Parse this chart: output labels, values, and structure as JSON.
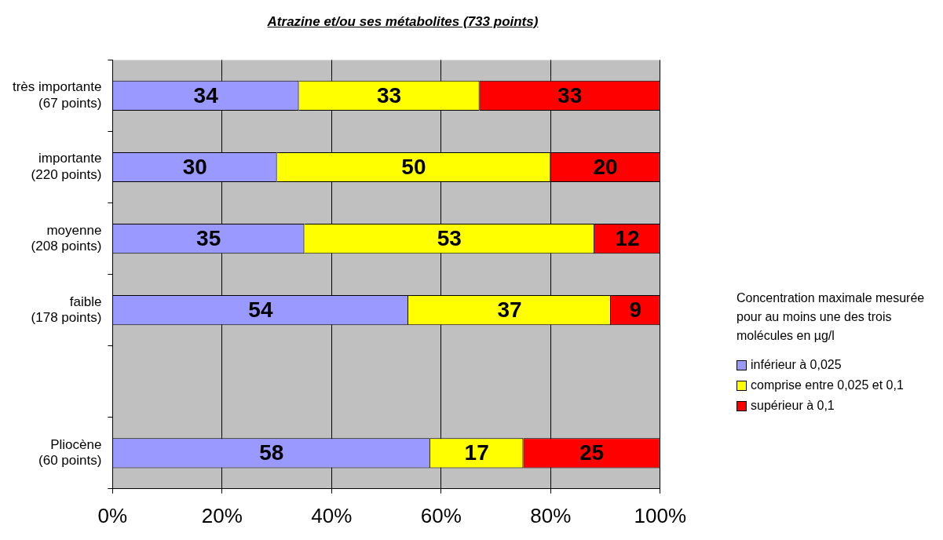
{
  "chart_data": {
    "type": "bar",
    "orientation": "horizontal",
    "stacked": true,
    "title": "Atrazine et/ou ses métabolites (733 points)",
    "legend_title": "Concentration maximale mesurée pour au moins une des trois molécules en µg/l",
    "categories": [
      "très importante (67 points)",
      "importante (220 points)",
      "moyenne (208 points)",
      "faible (178 points)",
      null,
      "Pliocène (60 points)"
    ],
    "series": [
      {
        "name": "inférieur à 0,025",
        "color": "#9999ff",
        "values": [
          34,
          30,
          35,
          54,
          null,
          58
        ]
      },
      {
        "name": "comprise entre 0,025 et 0,1",
        "color": "#ffff00",
        "values": [
          33,
          50,
          53,
          37,
          null,
          17
        ]
      },
      {
        "name": "supérieur à 0,1",
        "color": "#ff0000",
        "values": [
          33,
          20,
          12,
          9,
          null,
          25
        ]
      }
    ],
    "xlim": [
      0,
      100
    ],
    "xticks": [
      {
        "value": 0,
        "label": "0%"
      },
      {
        "value": 20,
        "label": "20%"
      },
      {
        "value": 40,
        "label": "40%"
      },
      {
        "value": 60,
        "label": "60%"
      },
      {
        "value": 80,
        "label": "80%"
      },
      {
        "value": 100,
        "label": "100%"
      }
    ],
    "grid": "x",
    "legend": "right",
    "data_labels": true
  }
}
